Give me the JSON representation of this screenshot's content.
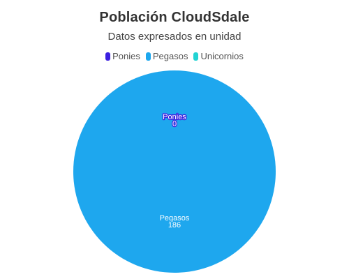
{
  "chart_data": {
    "type": "pie",
    "title": "Población CloudSdale",
    "subtitle": "Datos expresados en unidad",
    "legend_position": "top",
    "categories": [
      "Ponies",
      "Pegasos",
      "Unicornios"
    ],
    "values": [
      0,
      186,
      0
    ],
    "colors": [
      "#3b1fe0",
      "#1ea7ee",
      "#22d3d3"
    ],
    "data_labels": [
      {
        "name": "Ponies",
        "value": "0"
      },
      {
        "name": "Pegasos",
        "value": "186"
      }
    ]
  }
}
